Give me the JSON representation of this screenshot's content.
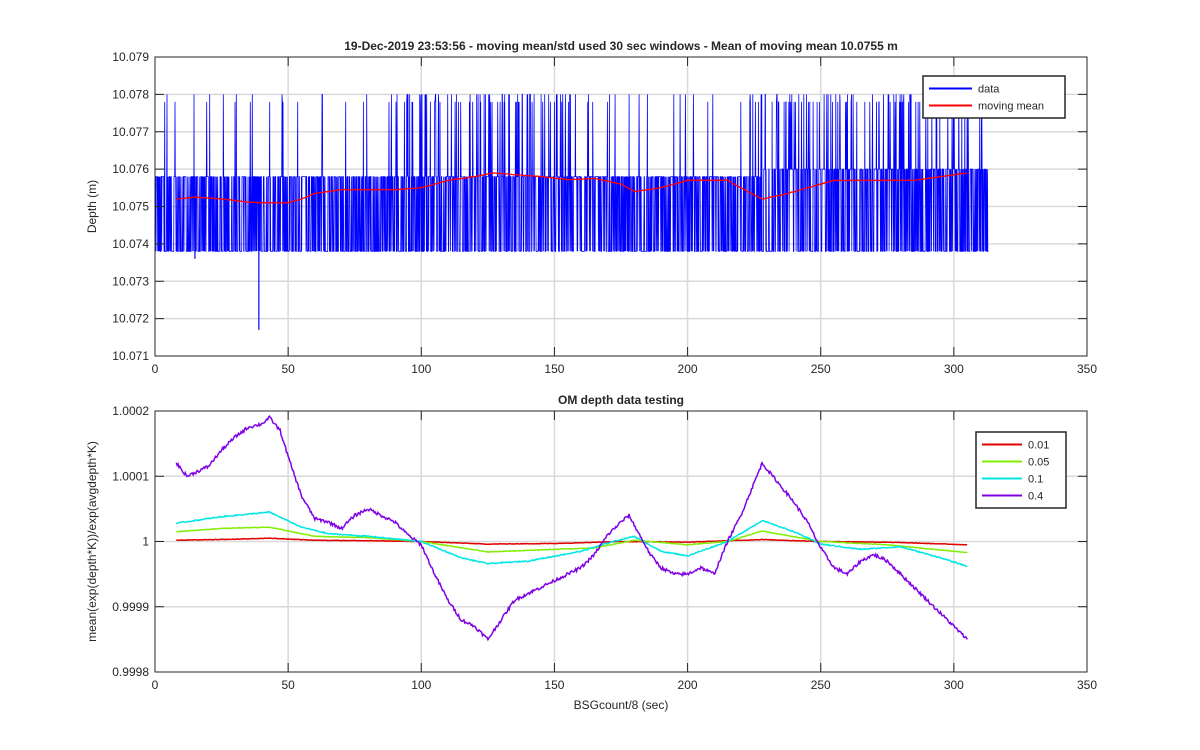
{
  "chart_data": [
    {
      "type": "line",
      "title": "19-Dec-2019 23:53:56 - moving mean/std used 30 sec windows - Mean of moving mean 10.0755 m",
      "xlabel": "",
      "ylabel": "Depth (m)",
      "xlim": [
        0,
        350
      ],
      "ylim": [
        10.071,
        10.079
      ],
      "xticks": [
        "0",
        "50",
        "100",
        "150",
        "200",
        "250",
        "300",
        "350"
      ],
      "yticks": [
        "10.071",
        "10.072",
        "10.073",
        "10.074",
        "10.075",
        "10.076",
        "10.077",
        "10.078",
        "10.079"
      ],
      "grid": true,
      "legend_position": "top-right",
      "series": [
        {
          "name": "data",
          "color": "#0000ff",
          "style": "dense-noise",
          "x_range": [
            0,
            313
          ],
          "baseline_low": 10.0738,
          "baseline_high": 10.0758,
          "baseline_high_late": 10.076,
          "late_start": 228,
          "spike_max": 10.078,
          "notable_minima": [
            {
              "x": 39,
              "y": 10.0717
            },
            {
              "x": 15,
              "y": 10.0736
            }
          ],
          "busy_intervals": [
            [
              88,
              158
            ],
            [
              222,
              312
            ]
          ]
        },
        {
          "name": "moving mean",
          "color": "#ff0000",
          "x": [
            8,
            15,
            25,
            35,
            40,
            45,
            50,
            55,
            60,
            70,
            80,
            90,
            100,
            110,
            120,
            127,
            135,
            145,
            155,
            165,
            175,
            180,
            190,
            200,
            210,
            215,
            220,
            228,
            235,
            245,
            255,
            265,
            275,
            285,
            295,
            305
          ],
          "y": [
            10.0752,
            10.07525,
            10.0752,
            10.07512,
            10.0751,
            10.0751,
            10.0751,
            10.0752,
            10.07535,
            10.07545,
            10.07545,
            10.07545,
            10.0755,
            10.0757,
            10.0758,
            10.0759,
            10.07585,
            10.0758,
            10.07572,
            10.07575,
            10.0756,
            10.0754,
            10.0755,
            10.0757,
            10.0757,
            10.0757,
            10.0755,
            10.0752,
            10.0753,
            10.0755,
            10.0757,
            10.0757,
            10.0757,
            10.0757,
            10.0758,
            10.0759
          ]
        }
      ]
    },
    {
      "type": "line",
      "title": "OM depth data testing",
      "xlabel": "BSGcount/8 (sec)",
      "ylabel": "mean(exp(depth*K))/exp(avgdepth*K)",
      "xlim": [
        0,
        350
      ],
      "ylim": [
        0.9998,
        1.0002
      ],
      "xticks": [
        "0",
        "50",
        "100",
        "150",
        "200",
        "250",
        "300",
        "350"
      ],
      "yticks": [
        "0.9998",
        "0.9999",
        "1",
        "1.0001",
        "1.0002"
      ],
      "grid": true,
      "legend_position": "top-right",
      "series": [
        {
          "name": "0.01",
          "color": "#e00000",
          "x": [
            8,
            25,
            43,
            60,
            80,
            100,
            125,
            150,
            175,
            200,
            228,
            250,
            275,
            305
          ],
          "y": [
            1.000002,
            1.000003,
            1.000005,
            1.000002,
            1.0000012,
            1.0,
            0.999996,
            0.999997,
            1.0,
            0.999999,
            1.000003,
            1.0,
            0.999999,
            0.999995
          ]
        },
        {
          "name": "0.05",
          "color": "#80ee00",
          "x": [
            8,
            25,
            43,
            60,
            80,
            100,
            125,
            150,
            165,
            180,
            200,
            215,
            228,
            250,
            275,
            305
          ],
          "y": [
            1.000015,
            1.00002,
            1.000022,
            1.000008,
            1.000006,
            1.0,
            0.999984,
            0.999988,
            0.99999,
            1.000002,
            0.999995,
            1.0,
            1.000016,
            1.0,
            0.999995,
            0.999983
          ]
        },
        {
          "name": "0.1",
          "color": "#00e6e6",
          "x": [
            8,
            25,
            43,
            55,
            65,
            80,
            100,
            115,
            125,
            140,
            160,
            172,
            180,
            190,
            200,
            215,
            228,
            240,
            250,
            265,
            280,
            295,
            305
          ],
          "y": [
            1.000028,
            1.000038,
            1.000045,
            1.000022,
            1.000012,
            1.000008,
            1.0,
            0.999975,
            0.999966,
            0.99997,
            0.999985,
            1.0,
            1.000008,
            0.999985,
            0.999978,
            1.0,
            1.000032,
            1.000015,
            0.999996,
            0.999988,
            0.999992,
            0.999975,
            0.999962
          ]
        },
        {
          "name": "0.4",
          "color": "#8000e6",
          "x": [
            8,
            12,
            20,
            25,
            30,
            35,
            40,
            43,
            47,
            50,
            55,
            60,
            65,
            70,
            75,
            80,
            85,
            90,
            95,
            100,
            105,
            110,
            115,
            120,
            125,
            130,
            135,
            140,
            145,
            150,
            155,
            160,
            165,
            170,
            175,
            178,
            182,
            186,
            190,
            195,
            200,
            205,
            210,
            215,
            220,
            225,
            228,
            232,
            236,
            240,
            245,
            250,
            255,
            260,
            265,
            270,
            275,
            280,
            285,
            290,
            295,
            300,
            305
          ],
          "y": [
            1.00012,
            1.0001,
            1.000115,
            1.00014,
            1.00016,
            1.000175,
            1.00018,
            1.00019,
            1.00017,
            1.00013,
            1.00007,
            1.000035,
            1.00003,
            1.00002,
            1.00004,
            1.00005,
            1.00004,
            1.00003,
            1.00001,
            0.999995,
            0.99995,
            0.99991,
            0.99988,
            0.99987,
            0.99985,
            0.99988,
            0.99991,
            0.99992,
            0.99993,
            0.99994,
            0.99995,
            0.99996,
            0.99998,
            1.00001,
            1.00003,
            1.00004,
            1.00001,
            0.99998,
            0.99996,
            0.99995,
            0.99995,
            0.99996,
            0.99995,
            1.0,
            1.00004,
            1.00009,
            1.00012,
            1.0001,
            1.00008,
            1.00006,
            1.00003,
            0.99999,
            0.99996,
            0.99995,
            0.99997,
            0.99998,
            0.99997,
            0.99995,
            0.99993,
            0.99991,
            0.99989,
            0.99987,
            0.99985
          ]
        }
      ]
    }
  ]
}
